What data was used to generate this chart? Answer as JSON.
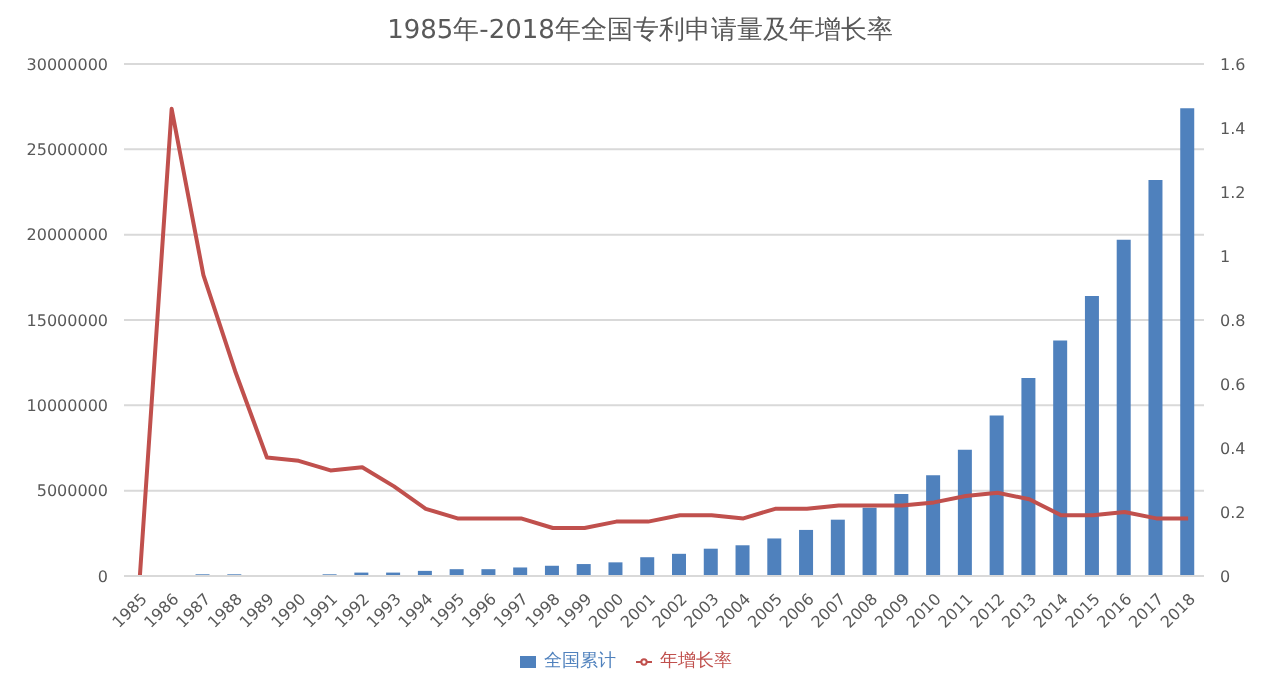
{
  "chart_data": {
    "type": "bar",
    "title": "1985年-2018年全国专利申请量及年增长率",
    "categories": [
      "1985",
      "1986",
      "1987",
      "1988",
      "1989",
      "1990",
      "1991",
      "1992",
      "1993",
      "1994",
      "1995",
      "1996",
      "1997",
      "1998",
      "1999",
      "2000",
      "2001",
      "2002",
      "2003",
      "2004",
      "2005",
      "2006",
      "2007",
      "2008",
      "2009",
      "2010",
      "2011",
      "2012",
      "2013",
      "2014",
      "2015",
      "2016",
      "2017",
      "2018"
    ],
    "series": [
      {
        "name": "全国累计",
        "color": "#4f81bd",
        "values": [
          0,
          0,
          100000,
          100000,
          0,
          0,
          100000,
          200000,
          200000,
          300000,
          400000,
          400000,
          500000,
          600000,
          700000,
          800000,
          1100000,
          1300000,
          1600000,
          1800000,
          2200000,
          2700000,
          3300000,
          4000000,
          4800000,
          5900000,
          7400000,
          9400000,
          11600000,
          13800000,
          16400000,
          19700000,
          23200000,
          27400000
        ]
      },
      {
        "name": "年增长率",
        "type": "line",
        "axis": "y2",
        "color": "#c0504d",
        "values": [
          0,
          1.46,
          0.94,
          0.64,
          0.37,
          0.36,
          0.33,
          0.34,
          0.28,
          0.21,
          0.18,
          0.18,
          0.18,
          0.15,
          0.15,
          0.17,
          0.17,
          0.19,
          0.19,
          0.18,
          0.21,
          0.21,
          0.22,
          0.22,
          0.22,
          0.23,
          0.25,
          0.26,
          0.24,
          0.19,
          0.19,
          0.2,
          0.18,
          0.18
        ]
      }
    ],
    "ylim": [
      0,
      30000000
    ],
    "yticks": [
      0,
      5000000,
      10000000,
      15000000,
      20000000,
      25000000,
      30000000
    ],
    "y2lim": [
      0,
      1.6
    ],
    "y2ticks": [
      0,
      0.2,
      0.4,
      0.6,
      0.8,
      1,
      1.2,
      1.4,
      1.6
    ],
    "grid": "y",
    "legend": "bottom",
    "marker": "none",
    "line_style": "solid"
  }
}
